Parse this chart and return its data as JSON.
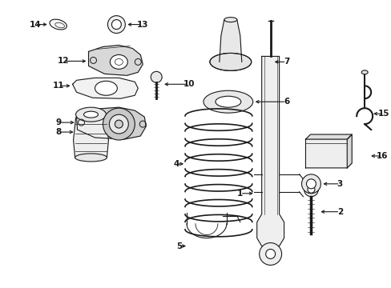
{
  "bg_color": "#ffffff",
  "line_color": "#1a1a1a",
  "gray_fill": "#d8d8d8",
  "light_fill": "#eeeeee",
  "fig_w": 4.89,
  "fig_h": 3.6,
  "dpi": 100
}
